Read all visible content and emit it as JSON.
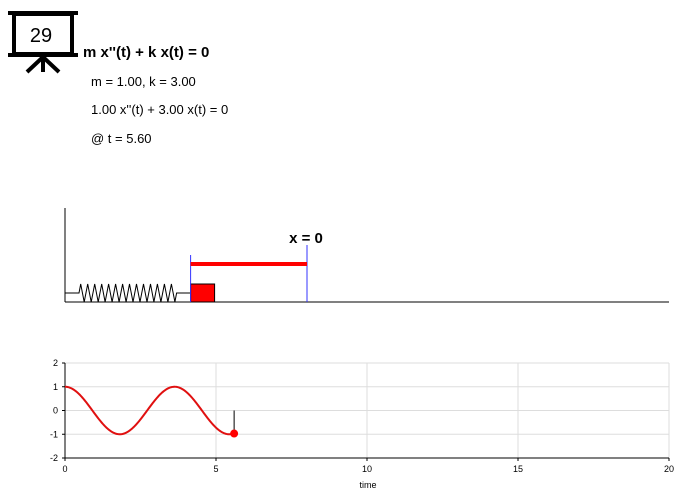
{
  "slide_number": "29",
  "equation": {
    "general": "m x''(t) + k x(t) = 0",
    "params": "m = 1.00, k = 3.00",
    "specific": "1.00 x''(t) + 3.00 x(t) = 0",
    "time_label": "@ t = 5.60"
  },
  "spring_diagram": {
    "equilibrium_label": "x = 0",
    "displacement": -0.97,
    "mass_color": "#ff0000",
    "marker_color": "#3333ff"
  },
  "chart_data": {
    "type": "line",
    "title": "",
    "xlabel": "time",
    "ylabel": "",
    "xlim": [
      0,
      20
    ],
    "ylim": [
      -2,
      2
    ],
    "x_ticks": [
      "0",
      "5",
      "10",
      "15",
      "20"
    ],
    "y_ticks": [
      "2",
      "1",
      "0",
      "-1",
      "-2"
    ],
    "grid": true,
    "series": [
      {
        "color": "#e01010",
        "omega": 1.732,
        "x": [
          0,
          0.5,
          1.0,
          1.5,
          1.81,
          2.0,
          2.5,
          3.0,
          3.5,
          3.63,
          4.0,
          4.5,
          5.0,
          5.44,
          5.6
        ],
        "y": [
          1.0,
          0.65,
          -0.16,
          -0.86,
          -1.0,
          -0.94,
          -0.34,
          0.51,
          0.99,
          1.0,
          0.82,
          0.02,
          -0.77,
          -1.0,
          -0.97
        ]
      }
    ],
    "current_point": {
      "t": 5.6,
      "x": -0.97
    }
  }
}
